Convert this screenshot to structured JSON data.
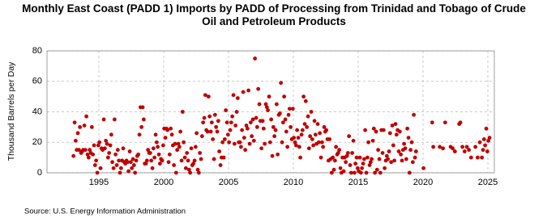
{
  "chart_data": {
    "type": "scatter",
    "title": "Monthly East Coast (PADD 1) Imports by PADD of Processing from Trinidad and Tobago of Crude Oil and Petroleum Products",
    "y_label": "Thousand Barrels per Day",
    "source": "Source: U.S. Energy Information Administration",
    "color": "#c00000",
    "grid": true,
    "xlim": [
      1991,
      2025.5
    ],
    "xticks": [
      1995,
      2000,
      2005,
      2010,
      2015,
      2020,
      2025
    ],
    "ylim": [
      0,
      80
    ],
    "yticks": [
      0,
      20,
      40,
      60,
      80
    ],
    "x": [
      1993.04,
      1993.13,
      1993.21,
      1993.29,
      1993.38,
      1993.46,
      1993.54,
      1993.63,
      1993.71,
      1993.79,
      1993.88,
      1993.96,
      1994.04,
      1994.13,
      1994.21,
      1994.29,
      1994.38,
      1994.46,
      1994.54,
      1994.63,
      1994.71,
      1994.79,
      1994.88,
      1994.96,
      1995.04,
      1995.13,
      1995.21,
      1995.29,
      1995.38,
      1995.46,
      1995.54,
      1995.63,
      1995.71,
      1995.79,
      1995.88,
      1995.96,
      1996.04,
      1996.13,
      1996.21,
      1996.29,
      1996.38,
      1996.46,
      1996.54,
      1996.63,
      1996.71,
      1996.79,
      1996.88,
      1996.96,
      1997.04,
      1997.13,
      1997.21,
      1997.29,
      1997.38,
      1997.46,
      1997.54,
      1997.63,
      1997.71,
      1997.79,
      1997.88,
      1997.96,
      1998.04,
      1998.13,
      1998.21,
      1998.29,
      1998.38,
      1998.46,
      1998.54,
      1998.63,
      1998.71,
      1998.79,
      1998.88,
      1998.96,
      1999.04,
      1999.13,
      1999.21,
      1999.29,
      1999.38,
      1999.46,
      1999.54,
      1999.63,
      1999.71,
      1999.79,
      1999.88,
      1999.96,
      2000.04,
      2000.13,
      2000.21,
      2000.29,
      2000.38,
      2000.46,
      2000.54,
      2000.63,
      2000.71,
      2000.79,
      2000.88,
      2000.96,
      2001.04,
      2001.13,
      2001.21,
      2001.29,
      2001.38,
      2001.46,
      2001.54,
      2001.63,
      2001.71,
      2001.79,
      2001.88,
      2001.96,
      2002.04,
      2002.13,
      2002.21,
      2002.29,
      2002.38,
      2002.46,
      2002.54,
      2002.63,
      2002.71,
      2002.79,
      2002.88,
      2002.96,
      2003.04,
      2003.13,
      2003.21,
      2003.29,
      2003.38,
      2003.46,
      2003.54,
      2003.63,
      2003.71,
      2003.79,
      2003.88,
      2003.96,
      2004.04,
      2004.13,
      2004.21,
      2004.29,
      2004.38,
      2004.46,
      2004.54,
      2004.63,
      2004.71,
      2004.79,
      2004.88,
      2004.96,
      2005.04,
      2005.13,
      2005.21,
      2005.29,
      2005.38,
      2005.46,
      2005.54,
      2005.63,
      2005.71,
      2005.79,
      2005.88,
      2005.96,
      2006.04,
      2006.13,
      2006.21,
      2006.29,
      2006.38,
      2006.46,
      2006.54,
      2006.63,
      2006.71,
      2006.79,
      2006.88,
      2006.96,
      2007.04,
      2007.13,
      2007.21,
      2007.29,
      2007.38,
      2007.46,
      2007.54,
      2007.63,
      2007.71,
      2007.79,
      2007.88,
      2007.96,
      2008.04,
      2008.13,
      2008.21,
      2008.29,
      2008.38,
      2008.46,
      2008.54,
      2008.63,
      2008.71,
      2008.79,
      2008.88,
      2008.96,
      2009.04,
      2009.13,
      2009.21,
      2009.29,
      2009.38,
      2009.46,
      2009.54,
      2009.63,
      2009.71,
      2009.79,
      2009.88,
      2009.96,
      2010.04,
      2010.13,
      2010.21,
      2010.29,
      2010.38,
      2010.46,
      2010.54,
      2010.63,
      2010.71,
      2010.79,
      2010.88,
      2010.96,
      2011.04,
      2011.13,
      2011.21,
      2011.29,
      2011.38,
      2011.46,
      2011.54,
      2011.63,
      2011.71,
      2011.79,
      2011.88,
      2011.96,
      2012.04,
      2012.13,
      2012.21,
      2012.29,
      2012.38,
      2012.46,
      2012.54,
      2012.63,
      2012.71,
      2012.79,
      2012.88,
      2012.96,
      2013.04,
      2013.13,
      2013.21,
      2013.29,
      2013.38,
      2013.46,
      2013.54,
      2013.63,
      2013.71,
      2013.79,
      2013.88,
      2013.96,
      2014.04,
      2014.13,
      2014.21,
      2014.29,
      2014.38,
      2014.46,
      2014.54,
      2014.63,
      2014.71,
      2014.79,
      2014.88,
      2014.96,
      2015.04,
      2015.13,
      2015.21,
      2015.29,
      2015.38,
      2015.46,
      2015.54,
      2015.63,
      2015.71,
      2015.79,
      2015.88,
      2015.96,
      2016.04,
      2016.13,
      2016.21,
      2016.29,
      2016.38,
      2016.46,
      2016.54,
      2016.63,
      2016.71,
      2016.79,
      2016.88,
      2016.96,
      2017.04,
      2017.13,
      2017.21,
      2017.29,
      2017.38,
      2017.46,
      2017.54,
      2017.63,
      2017.71,
      2017.79,
      2017.88,
      2017.96,
      2018.04,
      2018.13,
      2018.21,
      2018.29,
      2018.38,
      2018.46,
      2018.54,
      2018.63,
      2018.71,
      2018.79,
      2018.88,
      2018.96,
      2019.04,
      2019.13,
      2019.21,
      2019.29,
      2019.38,
      2019.46,
      2020.04,
      2020.71,
      2020.79,
      2021.29,
      2021.54,
      2021.71,
      2022.13,
      2022.29,
      2022.46,
      2022.79,
      2022.88,
      2023.04,
      2023.21,
      2023.38,
      2023.54,
      2023.71,
      2024.04,
      2024.21,
      2024.38,
      2024.54,
      2024.63,
      2024.71,
      2024.79,
      2024.88,
      2024.96,
      2025.04,
      2025.13
    ],
    "values": [
      11,
      33,
      21,
      15,
      26,
      15,
      30,
      13,
      14,
      15,
      31,
      15,
      37,
      12,
      10,
      15,
      13,
      30,
      12,
      18,
      5,
      8,
      0,
      18,
      20,
      3,
      16,
      15,
      35,
      16,
      21,
      19,
      10,
      13,
      18,
      25,
      7,
      3,
      35,
      12,
      5,
      15,
      8,
      0,
      3,
      8,
      16,
      7,
      6,
      8,
      7,
      1,
      14,
      7,
      3,
      9,
      5,
      0,
      8,
      11,
      12,
      25,
      43,
      30,
      43,
      35,
      6,
      6,
      8,
      15,
      13,
      13,
      8,
      3,
      16,
      10,
      25,
      20,
      17,
      12,
      6,
      9,
      8,
      18,
      29,
      23,
      29,
      28,
      7,
      12,
      29,
      25,
      18,
      5,
      19,
      0,
      15,
      19,
      17,
      27,
      8,
      40,
      20,
      10,
      3,
      13,
      8,
      2,
      0,
      16,
      5,
      6,
      8,
      17,
      26,
      2,
      0,
      13,
      9,
      24,
      33,
      36,
      51,
      28,
      27,
      50,
      37,
      27,
      33,
      22,
      9,
      38,
      30,
      27,
      34,
      14,
      5,
      10,
      20,
      10,
      22,
      41,
      33,
      25,
      20,
      28,
      33,
      37,
      51,
      19,
      31,
      40,
      49,
      20,
      20,
      17,
      28,
      53,
      23,
      15,
      31,
      29,
      54,
      19,
      33,
      24,
      35,
      21,
      75,
      36,
      30,
      55,
      45,
      34,
      16,
      34,
      29,
      19,
      45,
      43,
      41,
      50,
      20,
      35,
      11,
      30,
      24,
      28,
      45,
      12,
      38,
      39,
      59,
      20,
      33,
      50,
      35,
      27,
      17,
      38,
      42,
      30,
      22,
      42,
      23,
      20,
      18,
      28,
      23,
      17,
      10,
      25,
      28,
      50,
      32,
      47,
      30,
      37,
      16,
      24,
      40,
      22,
      18,
      34,
      25,
      19,
      32,
      20,
      26,
      10,
      20,
      17,
      30,
      27,
      28,
      22,
      8,
      22,
      9,
      0,
      10,
      2,
      8,
      17,
      12,
      13,
      15,
      3,
      0,
      10,
      1,
      10,
      7,
      11,
      13,
      24,
      5,
      0,
      13,
      21,
      0,
      6,
      10,
      3,
      1,
      10,
      0,
      3,
      6,
      9,
      28,
      0,
      10,
      20,
      5,
      7,
      9,
      21,
      29,
      0,
      27,
      2,
      15,
      9,
      0,
      28,
      13,
      28,
      3,
      8,
      11,
      9,
      14,
      26,
      7,
      31,
      18,
      8,
      32,
      25,
      28,
      14,
      27,
      12,
      8,
      15,
      19,
      16,
      9,
      29,
      23,
      0,
      15,
      20,
      7,
      38,
      10,
      14,
      3,
      33,
      17,
      17,
      16,
      33,
      17,
      16,
      14,
      32,
      33,
      17,
      14,
      17,
      15,
      10,
      17,
      10,
      20,
      10,
      15,
      22,
      18,
      29,
      14,
      21,
      23
    ]
  }
}
